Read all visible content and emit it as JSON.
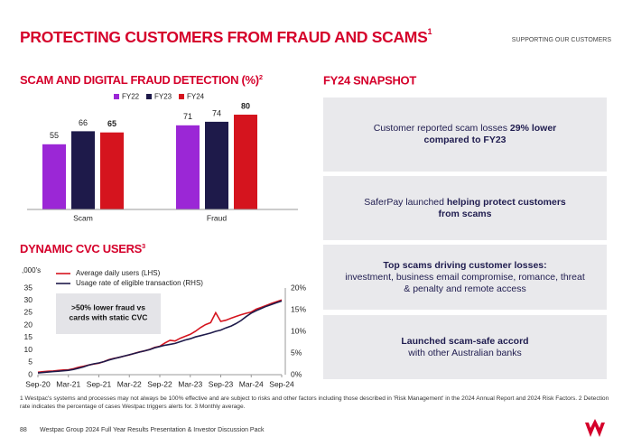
{
  "header": {
    "title": "PROTECTING CUSTOMERS FROM FRAUD AND SCAMS",
    "title_note": "1",
    "section": "SUPPORTING OUR CUSTOMERS"
  },
  "snapshot": {
    "title": "FY24 SNAPSHOT",
    "boxes": [
      {
        "text": "Customer reported scam losses ",
        "bold": "29% lower compared to FY23"
      },
      {
        "text": "SaferPay launched ",
        "bold": "helping protect customers from scams"
      },
      {
        "bold": "Top scams driving customer losses:",
        "text": "investment, business email compromise, romance, threat & penalty and remote access"
      },
      {
        "bold": "Launched scam-safe accord",
        "text": "with other Australian banks"
      }
    ]
  },
  "footnotes": [
    "1 Westpac's systems and processes may not always be 100% effective and are subject to risks and other factors including those described in 'Risk Management' in the 2024 Annual Report and 2024 Risk Factors. 2 Detection rate indicates the percentage of cases Westpac triggers alerts for. 3 Monthly average."
  ],
  "footer": {
    "page": "88",
    "text": "Westpac Group 2024 Full Year Results Presentation & Investor Discussion Pack"
  },
  "chart_data": [
    {
      "type": "bar",
      "title": "SCAM AND DIGITAL FRAUD DETECTION (%)",
      "title_note": "2",
      "categories": [
        "Scam",
        "Fraud"
      ],
      "ylim": [
        0,
        80
      ],
      "series": [
        {
          "name": "FY22",
          "color": "#9b27d6",
          "values": [
            55,
            71
          ]
        },
        {
          "name": "FY23",
          "color": "#1e1a4a",
          "values": [
            66,
            74
          ]
        },
        {
          "name": "FY24",
          "color": "#d5141e",
          "values": [
            65,
            80
          ]
        }
      ]
    },
    {
      "type": "line",
      "title": "DYNAMIC CVC USERS",
      "title_note": "3",
      "ylabel": ",000's",
      "annotation": [
        ">50% lower fraud vs",
        "cards with static CVC"
      ],
      "categories": [
        "Sep-20",
        null,
        null,
        null,
        null,
        null,
        "Mar-21",
        null,
        null,
        null,
        null,
        null,
        "Sep-21",
        null,
        null,
        null,
        null,
        null,
        "Mar-22",
        null,
        null,
        null,
        null,
        null,
        "Sep-22",
        null,
        null,
        null,
        null,
        null,
        "Mar-23",
        null,
        null,
        null,
        null,
        null,
        "Sep-23",
        null,
        null,
        null,
        null,
        null,
        "Mar-24",
        null,
        null,
        null,
        null,
        null,
        "Sep-24"
      ],
      "ylim": [
        0,
        35
      ],
      "yticks": [
        0,
        5,
        10,
        15,
        20,
        25,
        30,
        35
      ],
      "y2lim": [
        0,
        20
      ],
      "y2ticks": [
        {
          "value": 0,
          "label": "0%"
        },
        {
          "value": 5,
          "label": "5%"
        },
        {
          "value": 10,
          "label": "10%"
        },
        {
          "value": 15,
          "label": "15%"
        },
        {
          "value": 20,
          "label": "20%"
        }
      ],
      "series": [
        {
          "name": "Average daily users (LHS)",
          "color": "#d5141e",
          "values": [
            1.0,
            1.2,
            1.4,
            1.5,
            1.7,
            1.9,
            2.0,
            2.4,
            3.0,
            3.4,
            3.9,
            4.3,
            4.6,
            5.3,
            6.1,
            6.6,
            7.0,
            7.5,
            8.0,
            8.6,
            9.2,
            9.6,
            10.2,
            11.0,
            11.5,
            12.8,
            13.9,
            13.6,
            14.7,
            15.5,
            16.3,
            17.5,
            19.0,
            20.2,
            21.0,
            25.0,
            21.5,
            22.0,
            22.8,
            23.5,
            24.2,
            24.8,
            25.3,
            26.5,
            27.2,
            28.0,
            28.8,
            29.5,
            30.2
          ]
        },
        {
          "name": "Usage rate of eligible transaction (RHS)",
          "color": "#1e1a4a",
          "axis": "y2",
          "values": [
            0.4,
            0.5,
            0.6,
            0.7,
            0.8,
            0.9,
            1.0,
            1.2,
            1.5,
            1.8,
            2.2,
            2.5,
            2.7,
            3.0,
            3.4,
            3.7,
            4.0,
            4.3,
            4.6,
            4.9,
            5.2,
            5.5,
            5.8,
            6.2,
            6.5,
            6.8,
            7.0,
            7.2,
            7.6,
            8.0,
            8.3,
            8.7,
            9.0,
            9.3,
            9.6,
            10.0,
            10.3,
            10.8,
            11.2,
            11.8,
            12.5,
            13.4,
            14.2,
            14.8,
            15.3,
            15.8,
            16.2,
            16.6,
            17.0
          ]
        }
      ]
    }
  ]
}
